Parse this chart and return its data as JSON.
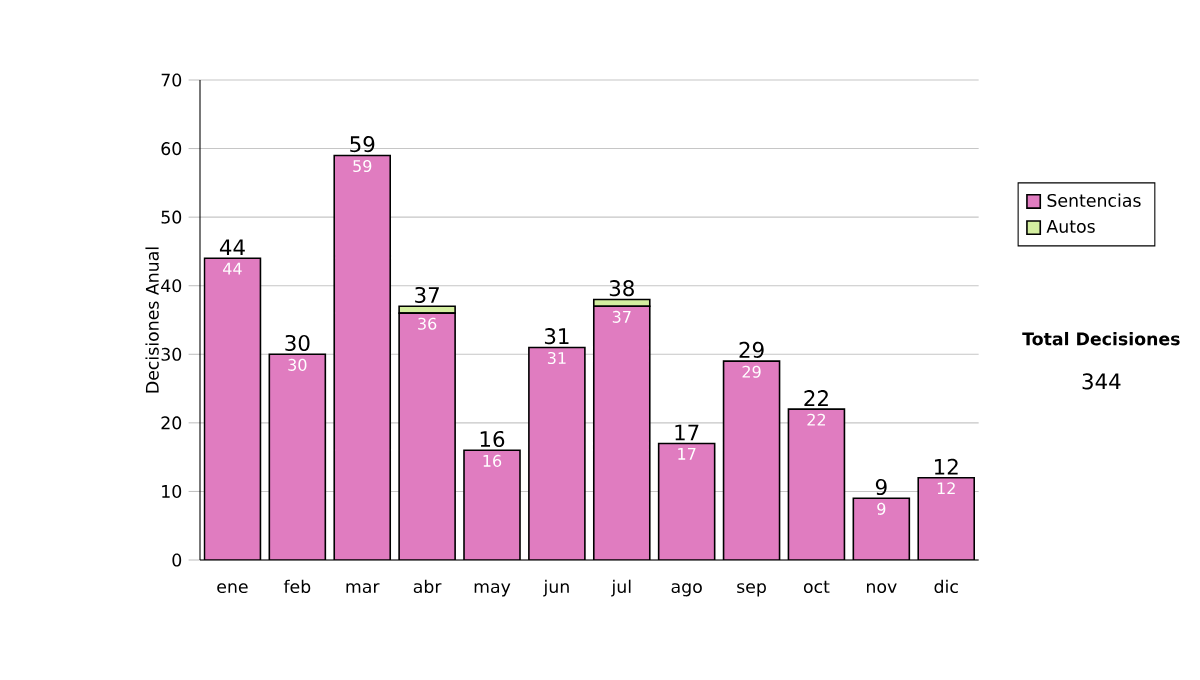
{
  "chart_data": {
    "type": "bar",
    "stacked": true,
    "ylabel": "Decisiones Anual",
    "categories": [
      "ene",
      "feb",
      "mar",
      "abr",
      "may",
      "jun",
      "jul",
      "ago",
      "sep",
      "oct",
      "nov",
      "dic"
    ],
    "series": [
      {
        "name": "Sentencias",
        "color": "#e07cc0",
        "values": [
          44,
          30,
          59,
          36,
          16,
          31,
          37,
          17,
          29,
          22,
          9,
          12
        ],
        "value_labels": [
          "44",
          "30",
          "59",
          "36",
          "16",
          "31",
          "37",
          "17",
          "29",
          "22",
          "9",
          "12"
        ]
      },
      {
        "name": "Autos",
        "color": "#d4eea0",
        "values": [
          0,
          0,
          0,
          1,
          0,
          0,
          1,
          0,
          0,
          0,
          0,
          0
        ]
      }
    ],
    "totals": [
      "44",
      "30",
      "59",
      "37",
      "16",
      "31",
      "38",
      "17",
      "29",
      "22",
      "9",
      "12"
    ],
    "ylim": [
      0,
      70
    ],
    "yticks": [
      0,
      10,
      20,
      30,
      40,
      50,
      60,
      70
    ],
    "grid": "y",
    "legend": "right",
    "annotations": [
      "Total Decisiones",
      "344"
    ]
  }
}
